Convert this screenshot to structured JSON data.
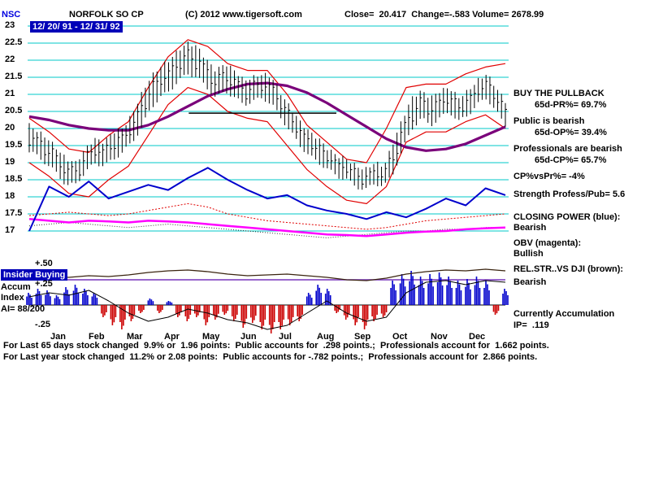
{
  "header": {
    "symbol": "NSC",
    "title": "NORFOLK SO CP",
    "copyright": "(C) 2012 www.tigersoft.com",
    "stats": "Close=  20.417  Change=-.583 Volume= 2678.99",
    "date_range": "12/ 20/ 91 - 12/ 31/ 92"
  },
  "colors": {
    "accent_blue": "#0000e0",
    "highlight_bg": "#0000b8",
    "grid": "#00c8c8",
    "price": "#000000",
    "band": "#e00000",
    "ma": "#7a007a",
    "closing_power": "#0000cc",
    "obv": "#ff00ff",
    "rel_str": "#3a2410",
    "accum_pos": "#0000cc",
    "accum_neg": "#cc0000",
    "lower_purple": "#7733bb"
  },
  "right_panel": {
    "lines": [
      "BUY THE PULLBACK",
      "65d-PR%= 69.7%",
      "Public is bearish",
      "65d-OP%= 39.4%",
      "Professionals are bearish",
      "65d-CP%= 65.7%",
      "CP%vsPr%= -4%",
      "Strength Profess/Pub= 5.6",
      "CLOSING POWER (blue):",
      "Bearish",
      "OBV (magenta):",
      "Bullish",
      "REL.STR..VS DJI (brown):",
      "Bearish",
      "Currently Accumulation",
      "IP=  .119"
    ]
  },
  "footer": {
    "line1": "For Last 65 days stock changed  9.9% or  1.96 points:  Public accounts for  .298 points.;  Professionals account for  1.662 points.",
    "line2": "For Last year stock changed  11.2% or 2.08 points:  Public accounts for -.782 points.;  Professionals account for  2.866 points."
  },
  "chart_data": {
    "type": "candlestick",
    "symbol": "NSC",
    "title": "NORFOLK SO CP",
    "date_range": "12/ 20/ 91 - 12/ 31/ 92",
    "close": 20.417,
    "change": -0.583,
    "volume": 2678.99,
    "y_axis": {
      "min": 17,
      "max": 23,
      "step": 0.5,
      "labels": [
        "23",
        "22.5",
        "22",
        "21.5",
        "21",
        "20.5",
        "20",
        "19.5",
        "19",
        "18.5",
        "18",
        "17.5",
        "17"
      ]
    },
    "months": [
      "Jan",
      "Feb",
      "Mar",
      "Apr",
      "May",
      "Jun",
      "Jul",
      "Aug",
      "Sep",
      "Oct",
      "Nov",
      "Dec"
    ],
    "price_weekly": {
      "lows": [
        19.3,
        19.2,
        18.9,
        18.7,
        18.3,
        18.4,
        18.7,
        19.0,
        18.9,
        19.1,
        19.3,
        19.6,
        20.0,
        20.6,
        20.9,
        21.1,
        21.4,
        21.6,
        21.5,
        21.2,
        20.9,
        21.1,
        20.9,
        20.7,
        20.8,
        20.9,
        20.7,
        20.3,
        19.9,
        19.5,
        19.2,
        19.0,
        18.8,
        18.6,
        18.5,
        18.3,
        18.2,
        18.4,
        18.3,
        18.7,
        19.4,
        20.0,
        20.3,
        20.1,
        20.3,
        20.5,
        20.2,
        20.4,
        20.7,
        20.9,
        20.5,
        20.1
      ],
      "highs": [
        20.1,
        19.9,
        19.7,
        19.4,
        19.1,
        19.0,
        19.4,
        19.7,
        19.6,
        19.9,
        20.0,
        20.4,
        21.0,
        21.5,
        21.8,
        22.0,
        22.3,
        22.5,
        22.4,
        22.0,
        21.7,
        21.9,
        21.7,
        21.4,
        21.5,
        21.6,
        21.5,
        21.0,
        20.6,
        20.2,
        19.9,
        19.7,
        19.4,
        19.2,
        19.1,
        18.9,
        18.8,
        19.0,
        18.9,
        19.6,
        20.3,
        20.9,
        21.1,
        20.9,
        21.1,
        21.2,
        20.9,
        21.1,
        21.4,
        21.6,
        21.2,
        20.8
      ]
    },
    "series": [
      {
        "name": "upper_band",
        "color": "#e00000",
        "width": 1.2,
        "dash": null,
        "y": [
          20.3,
          19.9,
          19.4,
          19.3,
          19.8,
          20.2,
          21.2,
          22.1,
          22.6,
          22.4,
          21.9,
          21.7,
          21.7,
          21.0,
          20.1,
          19.6,
          19.1,
          19.0,
          20.0,
          21.2,
          21.3,
          21.3,
          21.6,
          21.8,
          21.9
        ]
      },
      {
        "name": "lower_band",
        "color": "#e00000",
        "width": 1.2,
        "dash": null,
        "y": [
          19.0,
          18.6,
          18.1,
          18.0,
          18.5,
          18.9,
          19.8,
          20.7,
          21.2,
          21.0,
          20.5,
          20.3,
          20.2,
          19.5,
          18.8,
          18.3,
          17.9,
          17.8,
          18.3,
          19.6,
          19.9,
          19.9,
          20.2,
          20.4,
          20.0
        ]
      },
      {
        "name": "cp_reference_dotted",
        "color": "#e00000",
        "width": 1,
        "dash": "2,2",
        "y": [
          17.45,
          17.5,
          17.55,
          17.5,
          17.45,
          17.5,
          17.6,
          17.7,
          17.8,
          17.7,
          17.5,
          17.4,
          17.3,
          17.25,
          17.2,
          17.15,
          17.1,
          17.05,
          17.1,
          17.2,
          17.3,
          17.35,
          17.4,
          17.45,
          17.5
        ]
      },
      {
        "name": "obv_reference_dotted",
        "color": "#303030",
        "width": 1,
        "dash": "1,2",
        "y": [
          17.15,
          17.2,
          17.25,
          17.2,
          17.15,
          17.1,
          17.15,
          17.2,
          17.15,
          17.1,
          17.05,
          17.0,
          16.95,
          16.9,
          16.85,
          16.8,
          16.85,
          16.9,
          16.95,
          17.0,
          17.0,
          17.05,
          17.05,
          17.1,
          17.1
        ]
      },
      {
        "name": "obv",
        "color": "#ff00ff",
        "width": 2.5,
        "dash": null,
        "y": [
          17.35,
          17.3,
          17.25,
          17.3,
          17.28,
          17.25,
          17.3,
          17.28,
          17.25,
          17.2,
          17.15,
          17.1,
          17.05,
          17.0,
          16.95,
          16.9,
          16.88,
          16.85,
          16.9,
          16.95,
          16.98,
          17.0,
          17.05,
          17.08,
          17.1
        ]
      },
      {
        "name": "closing_power",
        "color": "#0000cc",
        "width": 2,
        "dash": null,
        "y": [
          17.0,
          18.3,
          18.0,
          18.45,
          17.95,
          18.15,
          18.35,
          18.2,
          18.55,
          18.85,
          18.5,
          18.2,
          17.95,
          18.05,
          17.75,
          17.6,
          17.5,
          17.35,
          17.55,
          17.4,
          17.65,
          17.95,
          17.75,
          18.25,
          18.05
        ]
      },
      {
        "name": "ma_65day",
        "color": "#7a007a",
        "width": 3.2,
        "dash": null,
        "y": [
          20.35,
          20.25,
          20.1,
          20.0,
          19.95,
          19.95,
          20.1,
          20.35,
          20.65,
          20.95,
          21.15,
          21.3,
          21.33,
          21.25,
          21.05,
          20.75,
          20.4,
          20.05,
          19.7,
          19.45,
          19.35,
          19.4,
          19.55,
          19.8,
          20.05
        ]
      }
    ],
    "trendline": {
      "x1": 0.335,
      "x2": 0.645,
      "price": 20.45
    },
    "lower_panel": {
      "labels": {
        "plus50": " +.50",
        "plus25": " +.25",
        "minus25": " -.25"
      },
      "insider_buying_label": "Insider Buying",
      "accum_label": "Accum",
      "index_label": "Index",
      "ai_value": "AI= 88/200",
      "purple_line_value": 0.31,
      "rel_str_vs_dji": [
        0.33,
        0.35,
        0.34,
        0.36,
        0.35,
        0.37,
        0.4,
        0.42,
        0.43,
        0.41,
        0.38,
        0.36,
        0.37,
        0.38,
        0.36,
        0.34,
        0.31,
        0.3,
        0.33,
        0.38,
        0.41,
        0.43,
        0.42,
        0.44,
        0.42
      ],
      "signal": [
        0.1,
        0.15,
        0.12,
        0.18,
        0.05,
        -0.1,
        -0.2,
        -0.15,
        -0.05,
        -0.1,
        -0.18,
        -0.22,
        -0.3,
        -0.25,
        -0.1,
        0.05,
        -0.1,
        -0.2,
        -0.15,
        0.15,
        0.28,
        0.3,
        0.25,
        0.3,
        0.28
      ],
      "accum_bars": [
        0.15,
        0.2,
        0.18,
        0.12,
        0.22,
        0.25,
        0.2,
        0.15,
        -0.15,
        -0.25,
        -0.3,
        -0.2,
        -0.1,
        0.08,
        -0.1,
        0.05,
        -0.15,
        -0.2,
        -0.15,
        -0.25,
        -0.18,
        -0.12,
        -0.2,
        -0.28,
        -0.22,
        -0.3,
        -0.35,
        -0.3,
        -0.25,
        -0.2,
        0.15,
        0.25,
        0.2,
        -0.1,
        -0.18,
        -0.25,
        -0.3,
        -0.2,
        -0.15,
        0.3,
        0.38,
        0.42,
        0.35,
        0.38,
        0.4,
        0.35,
        0.3,
        0.32,
        0.35,
        0.3,
        -0.12,
        0.2
      ]
    }
  }
}
